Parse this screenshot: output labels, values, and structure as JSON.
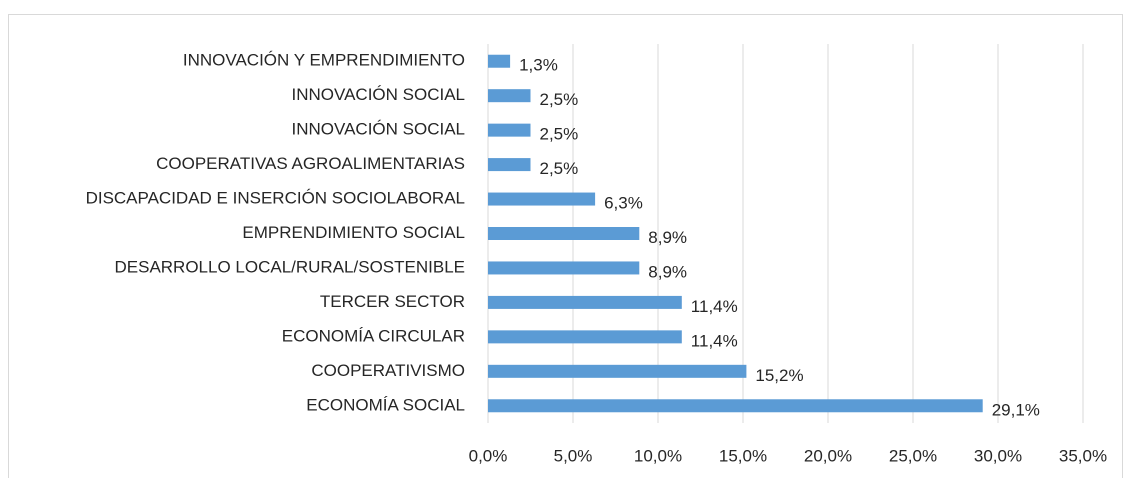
{
  "chart_data": {
    "type": "bar",
    "orientation": "horizontal",
    "categories": [
      "INNOVACIÓN Y EMPRENDIMIENTO",
      "INNOVACIÓN SOCIAL",
      "INNOVACIÓN SOCIAL",
      "COOPERATIVAS AGROALIMENTARIAS",
      "DISCAPACIDAD E INSERCIÓN SOCIOLABORAL",
      "EMPRENDIMIENTO SOCIAL",
      "DESARROLLO LOCAL/RURAL/SOSTENIBLE",
      "TERCER SECTOR",
      "ECONOMÍA CIRCULAR",
      "COOPERATIVISMO",
      "ECONOMÍA SOCIAL"
    ],
    "values": [
      1.3,
      2.5,
      2.5,
      2.5,
      6.3,
      8.9,
      8.9,
      11.4,
      11.4,
      15.2,
      29.1
    ],
    "value_labels": [
      "1,3%",
      "2,5%",
      "2,5%",
      "2,5%",
      "6,3%",
      "8,9%",
      "8,9%",
      "11,4%",
      "11,4%",
      "15,2%",
      "29,1%"
    ],
    "color": "#5b9bd5",
    "xlim": [
      0,
      35
    ],
    "xticks": [
      {
        "value": 0,
        "label": "0,0%"
      },
      {
        "value": 5,
        "label": "5,0%"
      },
      {
        "value": 10,
        "label": "10,0%"
      },
      {
        "value": 15,
        "label": "15,0%"
      },
      {
        "value": 20,
        "label": "20,0%"
      },
      {
        "value": 25,
        "label": "25,0%"
      },
      {
        "value": 30,
        "label": "30,0%"
      },
      {
        "value": 35,
        "label": "35,0%"
      }
    ],
    "grid": true
  }
}
